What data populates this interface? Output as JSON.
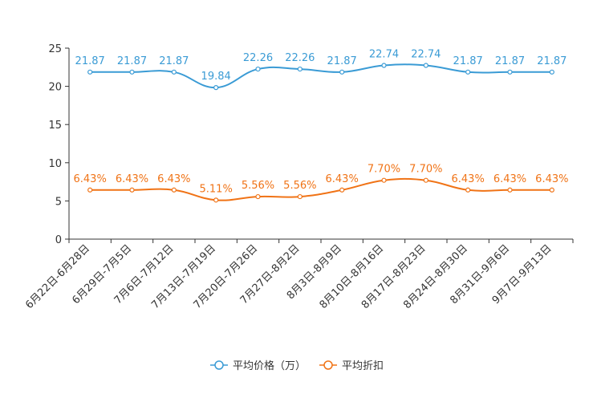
{
  "chart_data": {
    "type": "line",
    "title": "",
    "xlabel": "",
    "ylabel": "",
    "ylim": [
      0,
      25
    ],
    "yticks": [
      0,
      5,
      10,
      15,
      20,
      25
    ],
    "grid": false,
    "legend_position": "bottom-center",
    "categories": [
      "6月22日-6月28日",
      "6月29日-7月5日",
      "7月6日-7月12日",
      "7月13日-7月19日",
      "7月20日-7月26日",
      "7月27日-8月2日",
      "8月3日-8月9日",
      "8月10日-8月16日",
      "8月17日-8月23日",
      "8月24日-8月30日",
      "8月31日-9月6日",
      "9月7日-9月13日"
    ],
    "series": [
      {
        "name": "平均价格（万）",
        "color": "#3a9bd5",
        "values": [
          21.87,
          21.87,
          21.87,
          19.84,
          22.26,
          22.26,
          21.87,
          22.74,
          22.74,
          21.87,
          21.87,
          21.87
        ],
        "labels": [
          "21.87",
          "21.87",
          "21.87",
          "19.84",
          "22.26",
          "22.26",
          "21.87",
          "22.74",
          "22.74",
          "21.87",
          "21.87",
          "21.87"
        ]
      },
      {
        "name": "平均折扣",
        "color": "#f07316",
        "values": [
          6.43,
          6.43,
          6.43,
          5.11,
          5.56,
          5.56,
          6.43,
          7.7,
          7.7,
          6.43,
          6.43,
          6.43
        ],
        "labels": [
          "6.43%",
          "6.43%",
          "6.43%",
          "5.11%",
          "5.56%",
          "5.56%",
          "6.43%",
          "7.70%",
          "7.70%",
          "6.43%",
          "6.43%",
          "6.43%"
        ]
      }
    ]
  }
}
